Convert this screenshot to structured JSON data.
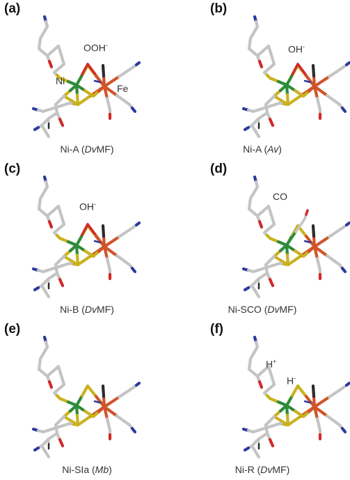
{
  "panels": [
    {
      "id": "a",
      "label": "(a)",
      "caption_pre": "Ni-A (",
      "caption_it": "Dv",
      "caption_post": "MF)",
      "annotations": [
        {
          "text": "OOH",
          "sup": "-",
          "kind": "ligand"
        },
        {
          "text": "Ni",
          "sup": "",
          "kind": "ni"
        },
        {
          "text": "Fe",
          "sup": "",
          "kind": "fe"
        }
      ]
    },
    {
      "id": "b",
      "label": "(b)",
      "caption_pre": "Ni-A (",
      "caption_it": "Av",
      "caption_post": ")",
      "annotations": [
        {
          "text": "OH",
          "sup": "-",
          "kind": "ligand"
        }
      ]
    },
    {
      "id": "c",
      "label": "(c)",
      "caption_pre": "Ni-B (",
      "caption_it": "Dv",
      "caption_post": "MF)",
      "annotations": [
        {
          "text": "OH",
          "sup": "-",
          "kind": "ligand"
        }
      ]
    },
    {
      "id": "d",
      "label": "(d)",
      "caption_pre": "Ni-SCO (",
      "caption_it": "Dv",
      "caption_post": "MF)",
      "annotations": [
        {
          "text": "CO",
          "sup": "",
          "kind": "ligand"
        }
      ]
    },
    {
      "id": "e",
      "label": "(e)",
      "caption_pre": "Ni-SIa (",
      "caption_it": "Mb",
      "caption_post": ")",
      "annotations": []
    },
    {
      "id": "f",
      "label": "(f)",
      "caption_pre": "Ni-R (",
      "caption_it": "Dv",
      "caption_post": "MF)",
      "annotations": [
        {
          "text": "H",
          "sup": "+",
          "kind": "proton"
        },
        {
          "text": "H",
          "sup": "-",
          "kind": "ligand"
        }
      ]
    }
  ],
  "colors": {
    "carbon": "#c4c4c4",
    "nickel": "#2e8b3a",
    "iron": "#d0542a",
    "sulfur": "#c9b21e",
    "nitrogen": "#2a3aa0",
    "oxygen": "#d02a2a",
    "dark": "#2a2a2a"
  }
}
